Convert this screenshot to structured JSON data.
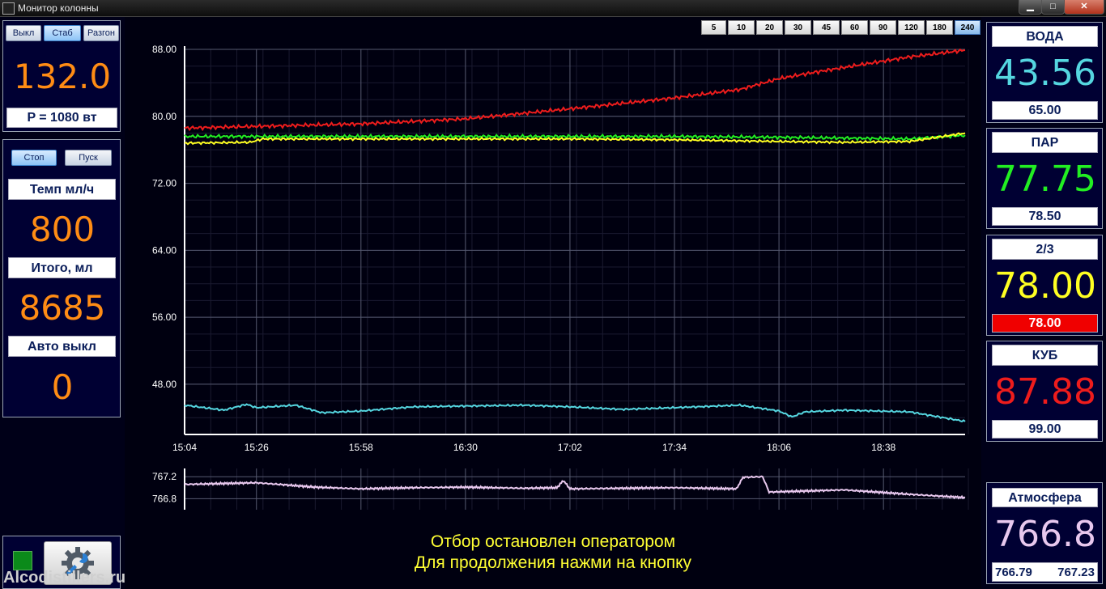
{
  "window": {
    "title": "Монитор колонны"
  },
  "power_panel": {
    "buttons": [
      "Выкл",
      "Стаб",
      "Разгон"
    ],
    "active_button": "Стаб",
    "value": "132.0",
    "power_label": "P = 1080 вт"
  },
  "draw_panel": {
    "stop_label": "Стоп",
    "start_label": "Пуск",
    "rate_label": "Темп мл/ч",
    "rate_value": "800",
    "total_label": "Итого, мл",
    "total_value": "8685",
    "auto_label": "Авто выкл",
    "auto_value": "0"
  },
  "status_indicator_color": "#0b8a1a",
  "watermark": "Alcodistillers.ru",
  "range_buttons": [
    "5",
    "10",
    "20",
    "30",
    "45",
    "60",
    "90",
    "120",
    "180",
    "240"
  ],
  "range_selected": "240",
  "sensors": [
    {
      "name": "ВОДА",
      "value": "43.56",
      "setpoint": "65.00",
      "color": "#55d6e0",
      "alarm": false
    },
    {
      "name": "ПАР",
      "value": "77.75",
      "setpoint": "78.50",
      "color": "#22ee22",
      "alarm": false
    },
    {
      "name": "2/3",
      "value": "78.00",
      "setpoint": "78.00",
      "color": "#ffff22",
      "alarm": true
    },
    {
      "name": "КУБ",
      "value": "87.88",
      "setpoint": "99.00",
      "color": "#ee1c1c",
      "alarm": false
    }
  ],
  "atmosphere": {
    "name": "Атмосфера",
    "value": "766.8",
    "min": "766.79",
    "max": "767.23",
    "color": "#e8c8ee"
  },
  "message": {
    "line1": "Отбор остановлен оператором",
    "line2": "Для продолжения нажми на кнопку"
  },
  "chart_data": [
    {
      "type": "line",
      "ylim": [
        42,
        88
      ],
      "y_ticks": [
        "88.00",
        "80.00",
        "72.00",
        "64.00",
        "56.00",
        "48.00"
      ],
      "x_ticks": [
        "15:04",
        "15:26",
        "15:58",
        "16:30",
        "17:02",
        "17:34",
        "18:06",
        "18:38"
      ],
      "x_range_min": [
        0,
        239
      ],
      "grid": true,
      "series": [
        {
          "color": "#ee1c1c",
          "x": [
            0,
            22,
            54,
            86,
            118,
            150,
            170,
            182,
            192,
            206,
            222,
            239
          ],
          "y": [
            78.6,
            78.8,
            79.1,
            79.7,
            80.9,
            82.2,
            83.2,
            84.5,
            85.2,
            86.1,
            87.1,
            87.9
          ]
        },
        {
          "color": "#22ee22",
          "x": [
            0,
            22,
            54,
            86,
            118,
            150,
            182,
            202,
            222,
            239
          ],
          "y": [
            77.6,
            77.6,
            77.6,
            77.6,
            77.6,
            77.6,
            77.5,
            77.4,
            77.3,
            77.75
          ]
        },
        {
          "color": "#ffff22",
          "x": [
            0,
            20,
            24,
            54,
            86,
            118,
            150,
            182,
            202,
            222,
            239
          ],
          "y": [
            76.8,
            76.9,
            77.3,
            77.3,
            77.3,
            77.3,
            77.2,
            77.0,
            76.9,
            77.0,
            78.0
          ]
        },
        {
          "color": "#55d6e0",
          "x": [
            0,
            12,
            19,
            22,
            34,
            42,
            54,
            70,
            86,
            104,
            118,
            134,
            150,
            170,
            182,
            186,
            190,
            202,
            222,
            239
          ],
          "y": [
            45.5,
            44.9,
            45.6,
            45.2,
            45.5,
            44.6,
            44.8,
            45.3,
            45.4,
            45.5,
            45.3,
            45.0,
            45.2,
            45.5,
            44.8,
            44.1,
            44.7,
            44.9,
            44.7,
            43.56
          ]
        }
      ]
    },
    {
      "type": "line",
      "ylim": [
        766.6,
        767.35
      ],
      "y_ticks": [
        "767.2",
        "766.8"
      ],
      "series": [
        {
          "color": "#e8c8ee",
          "x": [
            0,
            22,
            29,
            40,
            54,
            70,
            86,
            104,
            114,
            116,
            118,
            134,
            150,
            169,
            171,
            177,
            179,
            184,
            202,
            222,
            239
          ],
          "y": [
            767.06,
            767.09,
            767.06,
            767.01,
            766.98,
            767.0,
            767.01,
            766.99,
            767.0,
            767.13,
            766.98,
            766.99,
            767.0,
            766.98,
            767.19,
            767.2,
            766.92,
            766.93,
            766.96,
            766.88,
            766.82
          ]
        }
      ]
    }
  ]
}
